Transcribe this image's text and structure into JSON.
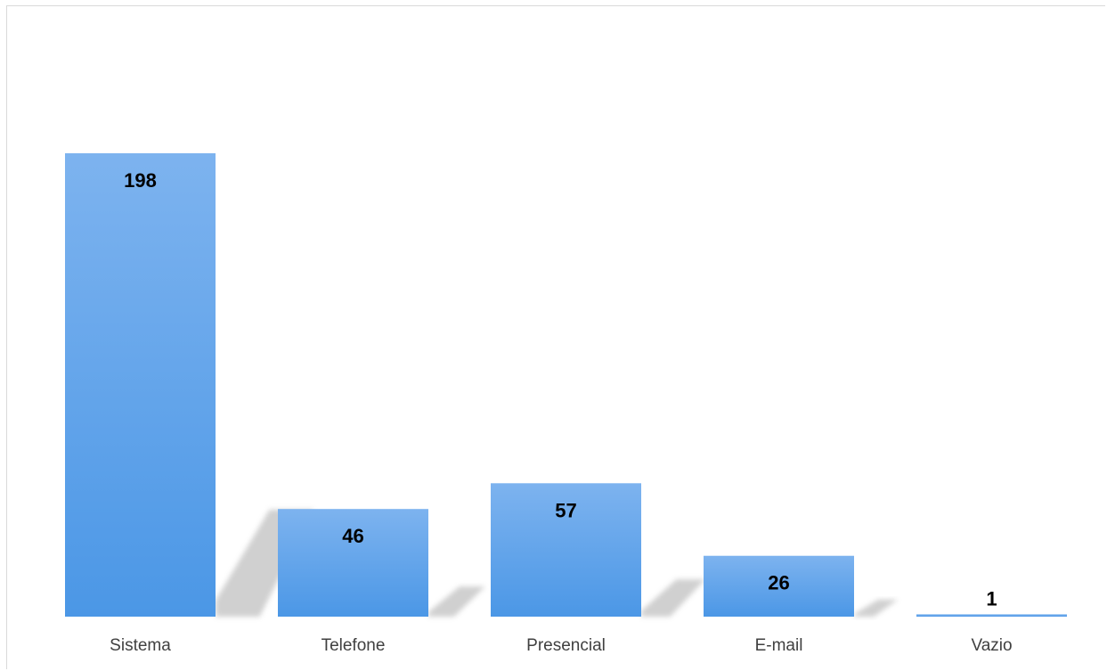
{
  "chart_data": {
    "type": "bar",
    "categories": [
      "Sistema",
      "Telefone",
      "Presencial",
      "E-mail",
      "Vazio"
    ],
    "values": [
      198,
      46,
      57,
      26,
      1
    ],
    "title": "",
    "xlabel": "",
    "ylabel": "",
    "ylim": [
      0,
      198
    ],
    "grid": false,
    "legend": "none",
    "data_labels": true,
    "colors": {
      "bar_top": "#7db3ef",
      "bar_bottom": "#4b97e6",
      "shadow": "#c8c8c8",
      "label": "#000000",
      "axis_text": "#404040"
    }
  }
}
